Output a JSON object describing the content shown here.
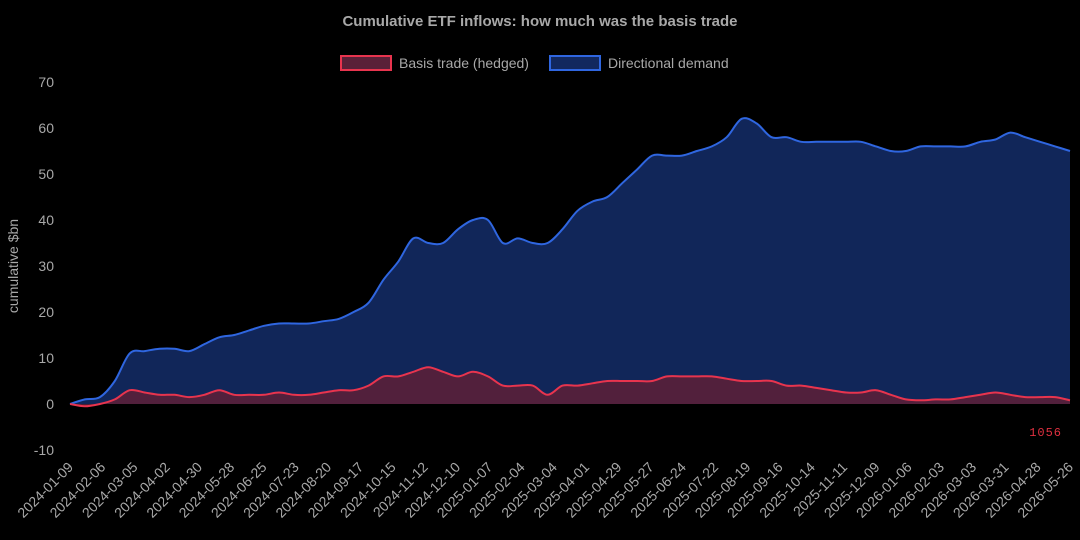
{
  "chart_data": {
    "type": "area",
    "title": "Cumulative ETF inflows: how much was the basis trade",
    "ylabel": "cumulative $bn",
    "xlabel": "",
    "ylim": [
      -10,
      70
    ],
    "yticks": [
      -10,
      0,
      10,
      20,
      30,
      40,
      50,
      60,
      70
    ],
    "grid": false,
    "legend_position": "top-center",
    "colors": {
      "basis_line": "#e8344e",
      "basis_fill": "#5a2038",
      "directional_line": "#2f66e0",
      "directional_fill": "#12285e"
    },
    "x_tick_labels": [
      "2024-01-09",
      "2024-02-06",
      "2024-03-05",
      "2024-04-02",
      "2024-04-30",
      "2024-05-28",
      "2024-06-25",
      "2024-07-23",
      "2024-08-20",
      "2024-09-17",
      "2024-10-15",
      "2024-11-12",
      "2024-12-10",
      "2025-01-07",
      "2025-02-04",
      "2025-03-04",
      "2025-04-01",
      "2025-04-29",
      "2025-05-27",
      "2025-06-24",
      "2025-07-22",
      "2025-08-19",
      "2025-09-16",
      "2025-10-14",
      "2025-11-11",
      "2025-12-09",
      "2026-01-06",
      "2026-02-03",
      "2026-03-03",
      "2026-03-31",
      "2026-04-28",
      "2026-05-26"
    ],
    "series": [
      {
        "name": "Basis trade (hedged)",
        "values": [
          0,
          -0.5,
          0,
          1,
          3,
          2.5,
          2,
          2,
          1.5,
          2,
          3,
          2,
          2,
          2,
          2.5,
          2,
          2,
          2.5,
          3,
          3,
          4,
          6,
          6,
          7,
          8,
          7,
          6,
          7,
          6,
          4,
          4,
          4,
          2,
          4,
          4,
          4.5,
          5,
          5,
          5,
          5,
          6,
          6,
          6,
          6,
          5.5,
          5,
          5,
          5,
          4,
          4,
          3.5,
          3,
          2.5,
          2.5,
          3,
          2,
          1,
          0.8,
          1,
          1,
          1.5,
          2,
          2.5,
          2,
          1.5,
          1.5,
          1.5,
          0.8
        ]
      },
      {
        "name": "Directional demand",
        "values": [
          0,
          1,
          1.5,
          5,
          11,
          11.5,
          12,
          12,
          11.5,
          13,
          14.5,
          15,
          16,
          17,
          17.5,
          17.5,
          17.5,
          18,
          18.5,
          20,
          22,
          27,
          31,
          36,
          35,
          35,
          38,
          40,
          40,
          35,
          36,
          35,
          35,
          38,
          42,
          44,
          45,
          48,
          51,
          54,
          54,
          54,
          55,
          56,
          58,
          62,
          61,
          58,
          58,
          57,
          57,
          57,
          57,
          57,
          56,
          55,
          55,
          56,
          56,
          56,
          56,
          57,
          57.5,
          59,
          58,
          57,
          56,
          55
        ]
      }
    ]
  },
  "watermark_text": "1056"
}
